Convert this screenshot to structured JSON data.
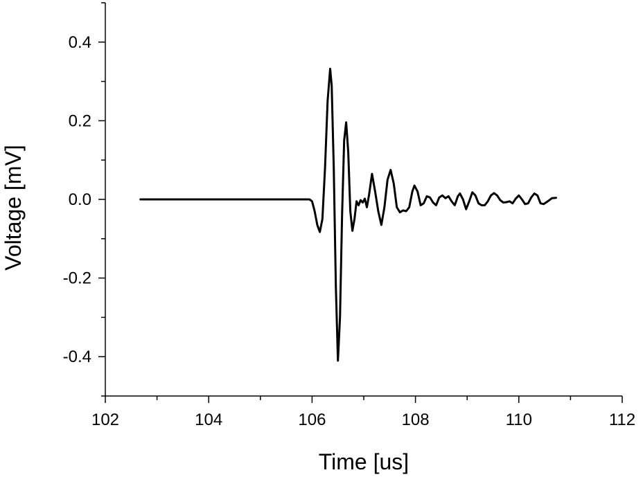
{
  "chart_data": {
    "type": "line",
    "title": "",
    "xlabel": "Time [us]",
    "ylabel": "Voltage [mV]",
    "xlim": [
      102,
      112
    ],
    "ylim": [
      -0.5,
      0.5
    ],
    "x_ticks": [
      102,
      104,
      106,
      108,
      110,
      112
    ],
    "x_tick_labels": [
      "102",
      "104",
      "106",
      "108",
      "110",
      "112"
    ],
    "y_ticks": [
      -0.4,
      -0.2,
      0.0,
      0.2,
      0.4
    ],
    "y_tick_labels": [
      "-0.4",
      "-0.2",
      "0.0",
      "0.2",
      "0.4"
    ],
    "grid": false,
    "legend": "none",
    "line_color": "#000000",
    "series": [
      {
        "points": [
          [
            102.68,
            0.0
          ],
          [
            103.5,
            0.0
          ],
          [
            104.5,
            0.0
          ],
          [
            105.5,
            0.0
          ],
          [
            105.95,
            0.0
          ],
          [
            106.0,
            -0.005
          ],
          [
            106.05,
            -0.03
          ],
          [
            106.1,
            -0.065
          ],
          [
            106.15,
            -0.083
          ],
          [
            106.2,
            -0.05
          ],
          [
            106.25,
            0.08
          ],
          [
            106.3,
            0.25
          ],
          [
            106.35,
            0.332
          ],
          [
            106.38,
            0.29
          ],
          [
            106.42,
            0.08
          ],
          [
            106.46,
            -0.22
          ],
          [
            106.5,
            -0.41
          ],
          [
            106.54,
            -0.3
          ],
          [
            106.58,
            -0.04
          ],
          [
            106.62,
            0.15
          ],
          [
            106.66,
            0.196
          ],
          [
            106.7,
            0.12
          ],
          [
            106.74,
            -0.03
          ],
          [
            106.78,
            -0.08
          ],
          [
            106.82,
            -0.05
          ],
          [
            106.86,
            -0.005
          ],
          [
            106.9,
            -0.015
          ],
          [
            106.94,
            -0.002
          ],
          [
            106.98,
            -0.008
          ],
          [
            107.02,
            0.002
          ],
          [
            107.06,
            -0.02
          ],
          [
            107.1,
            0.01
          ],
          [
            107.16,
            0.065
          ],
          [
            107.22,
            0.02
          ],
          [
            107.28,
            -0.03
          ],
          [
            107.34,
            -0.065
          ],
          [
            107.4,
            -0.02
          ],
          [
            107.46,
            0.05
          ],
          [
            107.52,
            0.075
          ],
          [
            107.58,
            0.04
          ],
          [
            107.64,
            -0.02
          ],
          [
            107.7,
            -0.033
          ],
          [
            107.76,
            -0.028
          ],
          [
            107.82,
            -0.03
          ],
          [
            107.88,
            -0.02
          ],
          [
            107.94,
            0.02
          ],
          [
            107.98,
            0.035
          ],
          [
            108.04,
            0.02
          ],
          [
            108.1,
            -0.015
          ],
          [
            108.16,
            -0.01
          ],
          [
            108.22,
            0.008
          ],
          [
            108.28,
            0.005
          ],
          [
            108.34,
            -0.008
          ],
          [
            108.4,
            -0.015
          ],
          [
            108.46,
            0.005
          ],
          [
            108.52,
            0.01
          ],
          [
            108.58,
            0.003
          ],
          [
            108.64,
            0.008
          ],
          [
            108.7,
            -0.005
          ],
          [
            108.76,
            -0.015
          ],
          [
            108.82,
            0.008
          ],
          [
            108.86,
            0.015
          ],
          [
            108.92,
            0.0
          ],
          [
            108.98,
            -0.025
          ],
          [
            109.04,
            -0.005
          ],
          [
            109.1,
            0.018
          ],
          [
            109.16,
            0.01
          ],
          [
            109.22,
            -0.01
          ],
          [
            109.28,
            -0.015
          ],
          [
            109.34,
            -0.015
          ],
          [
            109.4,
            -0.005
          ],
          [
            109.46,
            0.01
          ],
          [
            109.52,
            0.016
          ],
          [
            109.58,
            0.01
          ],
          [
            109.64,
            -0.002
          ],
          [
            109.7,
            -0.008
          ],
          [
            109.76,
            -0.007
          ],
          [
            109.82,
            -0.005
          ],
          [
            109.88,
            -0.01
          ],
          [
            109.94,
            0.002
          ],
          [
            110.0,
            0.01
          ],
          [
            110.06,
            0.0
          ],
          [
            110.12,
            -0.012
          ],
          [
            110.18,
            -0.01
          ],
          [
            110.24,
            0.005
          ],
          [
            110.3,
            0.015
          ],
          [
            110.36,
            0.01
          ],
          [
            110.42,
            -0.01
          ],
          [
            110.48,
            -0.012
          ],
          [
            110.56,
            -0.005
          ],
          [
            110.64,
            0.003
          ],
          [
            110.72,
            0.004
          ]
        ]
      }
    ]
  }
}
